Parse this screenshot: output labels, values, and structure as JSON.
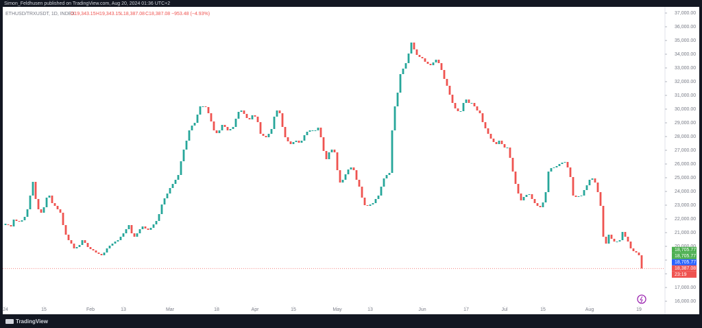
{
  "header": {
    "published": "Simon_Feldhusen published on TradingView.com, Aug 20, 2024 01:36 UTC+2",
    "symbol": "ETHUSD/TRXUSDT, 1D, INDEX",
    "open": "O19,343.15",
    "high": "H19,343.15",
    "low": "L18,387.08",
    "close": "C18,387.08",
    "change": "−953.48 (−4.93%)"
  },
  "footer": {
    "brand": "TradingView"
  },
  "chart_data": {
    "type": "candlestick",
    "close": [
      21600,
      21550,
      21450,
      21950,
      21850,
      21800,
      21900,
      22150,
      22700,
      23700,
      24700,
      23450,
      22700,
      22450,
      22850,
      23550,
      23700,
      23150,
      22950,
      22700,
      22450,
      21550,
      20850,
      20450,
      20200,
      19850,
      19950,
      20100,
      20450,
      20250,
      19950,
      19800,
      19700,
      19550,
      19450,
      19350,
      19550,
      19850,
      20050,
      20200,
      20350,
      20450,
      20700,
      20950,
      21250,
      21550,
      20950,
      20700,
      20950,
      21250,
      21450,
      21300,
      21200,
      21350,
      21600,
      21850,
      22350,
      23050,
      23500,
      23850,
      24250,
      24550,
      24850,
      25200,
      26200,
      27050,
      27700,
      28450,
      28800,
      29000,
      29600,
      30200,
      30200,
      30150,
      29700,
      29100,
      28450,
      28250,
      28450,
      28850,
      28700,
      28450,
      28550,
      28700,
      29300,
      29800,
      29900,
      29650,
      29350,
      29250,
      29550,
      29450,
      29050,
      28200,
      28050,
      27950,
      28200,
      28550,
      29450,
      29900,
      29700,
      28700,
      27950,
      27650,
      27450,
      27600,
      27700,
      27550,
      27700,
      28100,
      28350,
      28450,
      28450,
      28450,
      28650,
      27950,
      26950,
      26350,
      26850,
      27050,
      26850,
      25550,
      24650,
      24850,
      25250,
      25600,
      25750,
      25550,
      24850,
      24350,
      23550,
      23000,
      22950,
      23050,
      23150,
      23450,
      23700,
      24350,
      24950,
      25200,
      25350,
      28450,
      30200,
      31200,
      32550,
      32950,
      33350,
      34050,
      34850,
      34350,
      33950,
      33800,
      33700,
      33450,
      33300,
      33200,
      33400,
      33600,
      33350,
      32850,
      32200,
      31700,
      31050,
      30450,
      30050,
      29850,
      29850,
      30450,
      30700,
      30450,
      30450,
      30200,
      29900,
      29700,
      29050,
      28600,
      28200,
      27850,
      27600,
      27450,
      27700,
      27450,
      27200,
      27200,
      26450,
      25450,
      24550,
      23850,
      23350,
      23600,
      23750,
      23800,
      23450,
      23150,
      22950,
      22850,
      23200,
      23950,
      25450,
      25700,
      25750,
      25850,
      26000,
      26100,
      26150,
      25750,
      25050,
      23700,
      23600,
      23650,
      23700,
      24100,
      24450,
      24850,
      24950,
      24650,
      23950,
      22950,
      20700,
      20200,
      20850,
      20550,
      20350,
      20350,
      20450,
      21050,
      20700,
      20350,
      19850,
      19650,
      19550,
      19350,
      18387.08
    ],
    "up_color": "#26a69a",
    "down_color": "#ef5350",
    "xlim": [
      -2,
      240
    ],
    "xticks": [
      {
        "value": 0,
        "label": "24"
      },
      {
        "value": 14,
        "label": "15"
      },
      {
        "value": 31,
        "label": "Feb"
      },
      {
        "value": 43,
        "label": "13"
      },
      {
        "value": 60,
        "label": "Mar"
      },
      {
        "value": 77,
        "label": "18"
      },
      {
        "value": 91,
        "label": "Apr"
      },
      {
        "value": 105,
        "label": "15"
      },
      {
        "value": 121,
        "label": "May"
      },
      {
        "value": 133,
        "label": "13"
      },
      {
        "value": 152,
        "label": "Jun"
      },
      {
        "value": 168,
        "label": "17"
      },
      {
        "value": 182,
        "label": "Jul"
      },
      {
        "value": 196,
        "label": "15"
      },
      {
        "value": 213,
        "label": "Aug"
      },
      {
        "value": 231,
        "label": "19"
      }
    ],
    "ylim": [
      15050,
      37550
    ],
    "yticks": [
      {
        "value": 16000,
        "label": "16,000.00"
      },
      {
        "value": 17000,
        "label": "17,000.00"
      },
      {
        "value": 18000,
        "label": "18,000.00"
      },
      {
        "value": 19000,
        "label": "19,000.00"
      },
      {
        "value": 20000,
        "label": "20,000.00"
      },
      {
        "value": 21000,
        "label": "21,000.00"
      },
      {
        "value": 22000,
        "label": "22,000.00"
      },
      {
        "value": 23000,
        "label": "23,000.00"
      },
      {
        "value": 24000,
        "label": "24,000.00"
      },
      {
        "value": 25000,
        "label": "25,000.00"
      },
      {
        "value": 26000,
        "label": "26,000.00"
      },
      {
        "value": 27000,
        "label": "27,000.00"
      },
      {
        "value": 28000,
        "label": "28,000.00"
      },
      {
        "value": 29000,
        "label": "29,000.00"
      },
      {
        "value": 30000,
        "label": "30,000.00"
      },
      {
        "value": 31000,
        "label": "31,000.00"
      },
      {
        "value": 32000,
        "label": "32,000.00"
      },
      {
        "value": 33000,
        "label": "33,000.00"
      },
      {
        "value": 34000,
        "label": "34,000.00"
      },
      {
        "value": 35000,
        "label": "35,000.00"
      },
      {
        "value": 36000,
        "label": "36,000.00"
      },
      {
        "value": 37000,
        "label": "37,000.00"
      }
    ],
    "last_price": 18387.08,
    "price_labels": [
      {
        "value": 18705.77,
        "label": "18,705.77",
        "color": "#4caf50"
      },
      {
        "value": 18705.77,
        "label": "18,705.77",
        "color": "#4caf50"
      },
      {
        "value": 18705.77,
        "label": "18,705.77",
        "color": "#2962ff"
      },
      {
        "value": 18387.08,
        "label": "18,387.08",
        "color": "#ef5350"
      }
    ],
    "countdown": "23:19"
  }
}
